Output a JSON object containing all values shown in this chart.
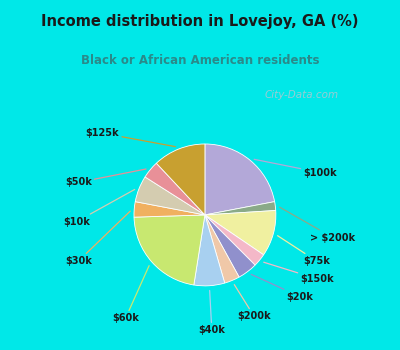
{
  "title": "Income distribution in Lovejoy, GA (%)",
  "subtitle": "Black or African American residents",
  "title_color": "#1a1a1a",
  "subtitle_color": "#2a8a8a",
  "header_bg": "#00e8e8",
  "chart_bg_color": "#e8f8f0",
  "border_color": "#00e8e8",
  "watermark": "City-Data.com",
  "slices": [
    {
      "label": "$100k",
      "value": 22.0,
      "color": "#b3a8d8"
    },
    {
      "label": "> $200k",
      "value": 2.0,
      "color": "#8aaa88"
    },
    {
      "label": "$75k",
      "value": 10.5,
      "color": "#f0f0a0"
    },
    {
      "label": "$150k",
      "value": 3.0,
      "color": "#f4b8c8"
    },
    {
      "label": "$20k",
      "value": 4.5,
      "color": "#9090cc"
    },
    {
      "label": "$200k",
      "value": 3.5,
      "color": "#f0c8a8"
    },
    {
      "label": "$40k",
      "value": 7.0,
      "color": "#a8d0f0"
    },
    {
      "label": "$60k",
      "value": 22.0,
      "color": "#c8e870"
    },
    {
      "label": "$30k",
      "value": 3.5,
      "color": "#f0b060"
    },
    {
      "label": "$10k",
      "value": 6.0,
      "color": "#d4ccb0"
    },
    {
      "label": "$50k",
      "value": 4.0,
      "color": "#e89098"
    },
    {
      "label": "$125k",
      "value": 12.0,
      "color": "#c8a030"
    }
  ]
}
